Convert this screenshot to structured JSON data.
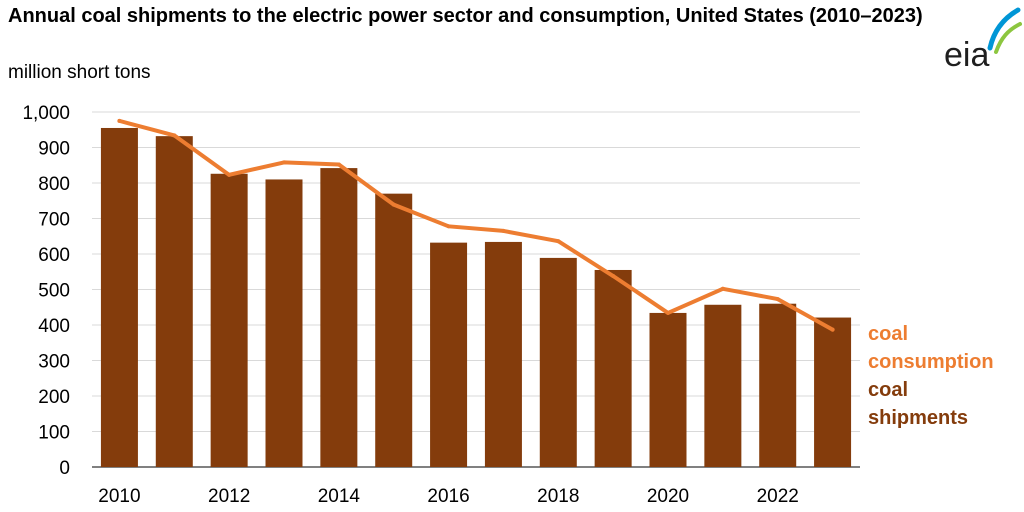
{
  "header": {
    "title": "Annual coal shipments to the electric power sector and consumption, United States (2010–2023)",
    "unit": "million short tons",
    "logo_text": "eia"
  },
  "colors": {
    "bars": "#843c0c",
    "line": "#ed7d31",
    "grid": "#d9d9d9",
    "logo_text": "#1f1f1f",
    "logo_arc_blue": "#0096d6",
    "logo_arc_green": "#8cc63f"
  },
  "chart_data": {
    "type": "bar",
    "title": "Annual coal shipments to the electric power sector and consumption, United States (2010–2023)",
    "ylabel": "million short tons",
    "xlabel": "",
    "ylim": [
      0,
      1000
    ],
    "yticks": [
      0,
      100,
      200,
      300,
      400,
      500,
      600,
      700,
      800,
      900,
      1000
    ],
    "ytick_labels": [
      "0",
      "100",
      "200",
      "300",
      "400",
      "500",
      "600",
      "700",
      "800",
      "900",
      "1,000"
    ],
    "categories": [
      2010,
      2011,
      2012,
      2013,
      2014,
      2015,
      2016,
      2017,
      2018,
      2019,
      2020,
      2021,
      2022,
      2023
    ],
    "xtick_labels": [
      "2010",
      "2012",
      "2014",
      "2016",
      "2018",
      "2020",
      "2022"
    ],
    "grid": "horizontal",
    "legend_placement": "right",
    "series": [
      {
        "name": "coal shipments",
        "type": "bar",
        "values": [
          955,
          932,
          826,
          810,
          842,
          770,
          632,
          634,
          589,
          555,
          434,
          457,
          460,
          421
        ]
      },
      {
        "name": "coal consumption",
        "type": "line",
        "values": [
          975,
          934,
          823,
          858,
          852,
          739,
          678,
          665,
          636,
          538,
          434,
          502,
          473,
          387
        ]
      }
    ],
    "legend": [
      {
        "lines": [
          "coal",
          "consumption"
        ],
        "series": "coal consumption"
      },
      {
        "lines": [
          "coal",
          "shipments"
        ],
        "series": "coal shipments"
      }
    ]
  }
}
